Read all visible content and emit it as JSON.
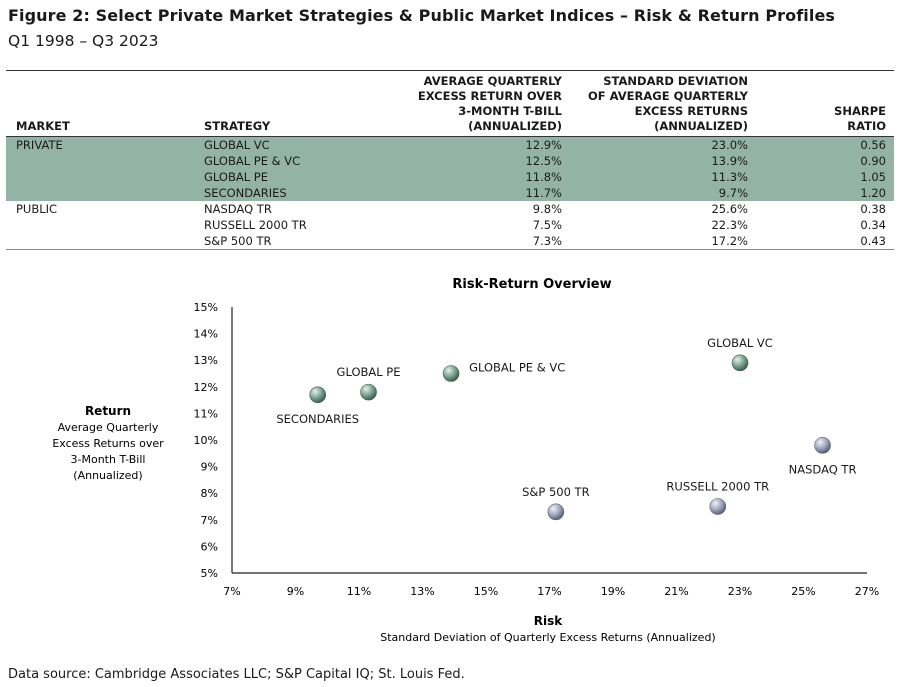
{
  "header": {
    "title": "Figure 2: Select Private Market Strategies & Public Market Indices – Risk & Return Profiles",
    "subtitle": "Q1 1998 – Q3 2023"
  },
  "table": {
    "columns": {
      "market": "MARKET",
      "strategy": "STRATEGY",
      "return_lines": [
        "AVERAGE QUARTERLY",
        "EXCESS RETURN OVER",
        "3-MONTH T-BILL",
        "(ANNUALIZED)"
      ],
      "sd_lines": [
        "STANDARD DEVIATION",
        "OF AVERAGE QUARTERLY",
        "EXCESS RETURNS",
        "(ANNUALIZED)"
      ],
      "sharpe_lines": [
        "SHARPE",
        "RATIO"
      ]
    },
    "rows": [
      {
        "market": "PRIVATE",
        "strategy": "GLOBAL VC",
        "ret": "12.9%",
        "sd": "23.0%",
        "sharpe": "0.56",
        "group": "private"
      },
      {
        "market": "",
        "strategy": "GLOBAL PE & VC",
        "ret": "12.5%",
        "sd": "13.9%",
        "sharpe": "0.90",
        "group": "private"
      },
      {
        "market": "",
        "strategy": "GLOBAL PE",
        "ret": "11.8%",
        "sd": "11.3%",
        "sharpe": "1.05",
        "group": "private"
      },
      {
        "market": "",
        "strategy": "SECONDARIES",
        "ret": "11.7%",
        "sd": "9.7%",
        "sharpe": "1.20",
        "group": "private"
      },
      {
        "market": "PUBLIC",
        "strategy": "NASDAQ TR",
        "ret": "9.8%",
        "sd": "25.6%",
        "sharpe": "0.38",
        "group": "public"
      },
      {
        "market": "",
        "strategy": "RUSSELL 2000 TR",
        "ret": "7.5%",
        "sd": "22.3%",
        "sharpe": "0.34",
        "group": "public"
      },
      {
        "market": "",
        "strategy": "S&P 500 TR",
        "ret": "7.3%",
        "sd": "17.2%",
        "sharpe": "0.43",
        "group": "public"
      }
    ]
  },
  "chart_data": {
    "type": "scatter",
    "title": "Risk-Return Overview",
    "xlabel": "Risk",
    "xsublabel": "Standard Deviation of Quarterly Excess Returns (Annualized)",
    "ylabel": "Return",
    "ysublabel": [
      "Average Quarterly",
      "Excess Returns over",
      "3-Month T-Bill",
      "(Annualized)"
    ],
    "xlim": [
      7,
      27
    ],
    "ylim": [
      5,
      15
    ],
    "xticks": [
      7,
      9,
      11,
      13,
      15,
      17,
      19,
      21,
      23,
      25,
      27
    ],
    "xtick_labels": [
      "7%",
      "9%",
      "11%",
      "13%",
      "15%",
      "17%",
      "19%",
      "21%",
      "23%",
      "25%",
      "27%"
    ],
    "yticks": [
      5,
      6,
      7,
      8,
      9,
      10,
      11,
      12,
      13,
      14,
      15
    ],
    "ytick_labels": [
      "5%",
      "6%",
      "7%",
      "8%",
      "9%",
      "10%",
      "11%",
      "12%",
      "13%",
      "14%",
      "15%"
    ],
    "grid": false,
    "points": [
      {
        "label": "GLOBAL VC",
        "x": 23.0,
        "y": 12.9,
        "group": "private",
        "label_pos": "above"
      },
      {
        "label": "GLOBAL PE & VC",
        "x": 13.9,
        "y": 12.5,
        "group": "private",
        "label_pos": "right"
      },
      {
        "label": "GLOBAL PE",
        "x": 11.3,
        "y": 11.8,
        "group": "private",
        "label_pos": "above"
      },
      {
        "label": "SECONDARIES",
        "x": 9.7,
        "y": 11.7,
        "group": "private",
        "label_pos": "below"
      },
      {
        "label": "NASDAQ TR",
        "x": 25.6,
        "y": 9.8,
        "group": "public",
        "label_pos": "below"
      },
      {
        "label": "RUSSELL 2000 TR",
        "x": 22.3,
        "y": 7.5,
        "group": "public",
        "label_pos": "above"
      },
      {
        "label": "S&P 500 TR",
        "x": 17.2,
        "y": 7.3,
        "group": "public",
        "label_pos": "above"
      }
    ],
    "colors": {
      "private": "#6f9c88",
      "public": "#9da6bd"
    }
  },
  "footer": {
    "source": "Data source: Cambridge Associates LLC; S&P Capital IQ; St. Louis Fed."
  }
}
